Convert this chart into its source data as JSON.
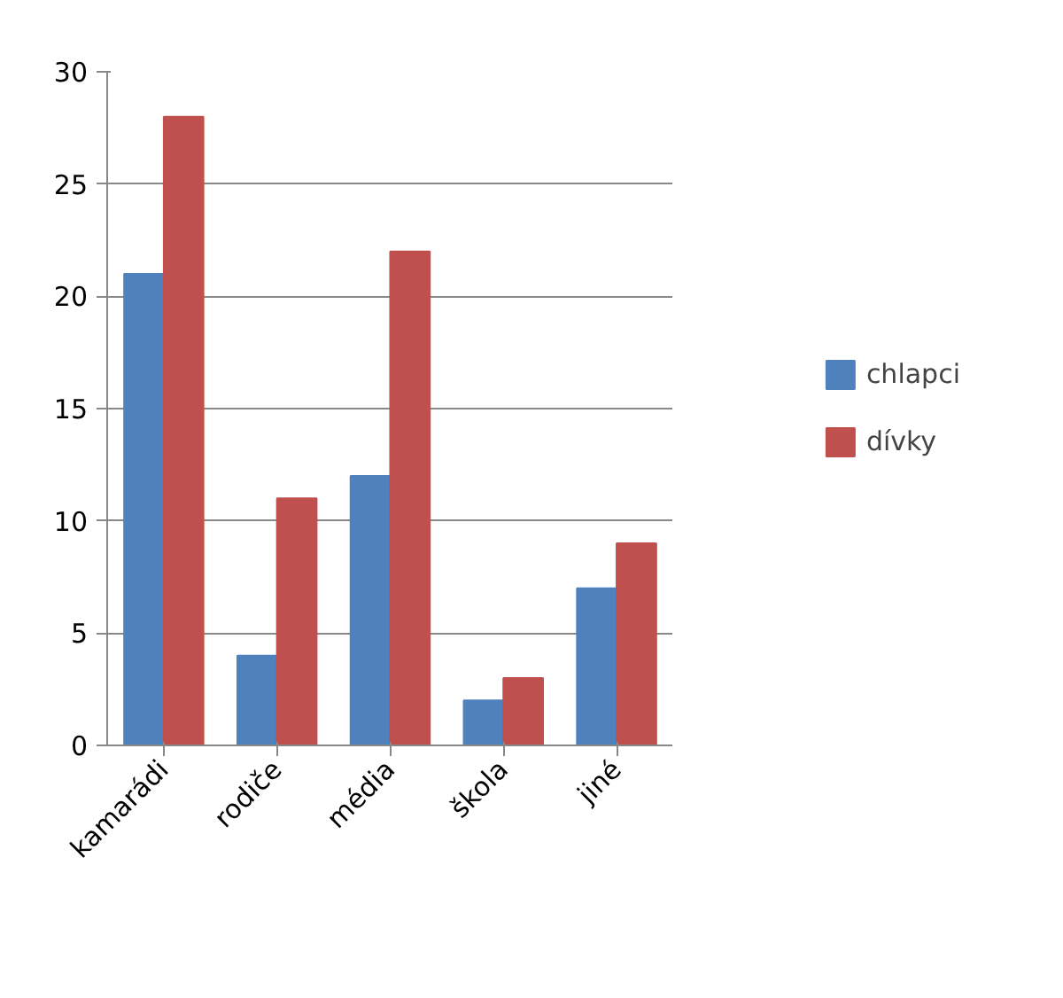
{
  "chart_data": {
    "type": "bar",
    "categories": [
      "kamarádi",
      "rodiče",
      "média",
      "škola",
      "jiné"
    ],
    "series": [
      {
        "name": "chlapci",
        "color": "#4f81bd",
        "values": [
          21,
          4,
          12,
          2,
          7
        ]
      },
      {
        "name": "dívky",
        "color": "#c0504d",
        "values": [
          28,
          11,
          22,
          3,
          9
        ]
      }
    ],
    "ylim": [
      0,
      30
    ],
    "yticks": [
      0,
      5,
      10,
      15,
      20,
      25,
      30
    ],
    "grid": "y",
    "legend": "right"
  }
}
